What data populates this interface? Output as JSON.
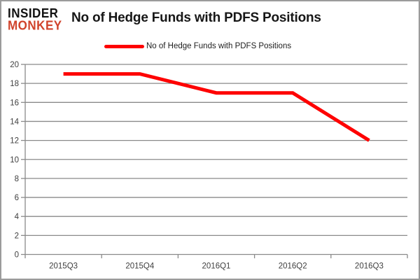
{
  "logo": {
    "line1": "INSIDER",
    "line2": "MONKEY",
    "line1_color": "#111111",
    "line2_color": "#d0432b"
  },
  "header": {
    "title": "No of Hedge Funds with PDFS Positions"
  },
  "legend": {
    "label": "No of Hedge Funds with PDFS Positions",
    "swatch_color": "#fe0000"
  },
  "chart_data": {
    "type": "line",
    "title": "No of Hedge Funds with PDFS Positions",
    "categories": [
      "2015Q3",
      "2015Q4",
      "2016Q1",
      "2016Q2",
      "2016Q3"
    ],
    "series": [
      {
        "name": "No of Hedge Funds with PDFS Positions",
        "values": [
          19,
          19,
          17,
          17,
          12
        ],
        "color": "#fe0000",
        "line_width": 5
      }
    ],
    "xlabel": "",
    "ylabel": "",
    "ylim": [
      0,
      20
    ],
    "y_ticks": [
      0,
      2,
      4,
      6,
      8,
      10,
      12,
      14,
      16,
      18,
      20
    ],
    "grid": true,
    "legend_position": "top",
    "gridline_color": "#8a8a8a",
    "axis_color": "#8a8a8a",
    "tick_label_color": "#404040"
  },
  "frame": {
    "border_color": "#9b9b9b",
    "background": "#ffffff"
  }
}
